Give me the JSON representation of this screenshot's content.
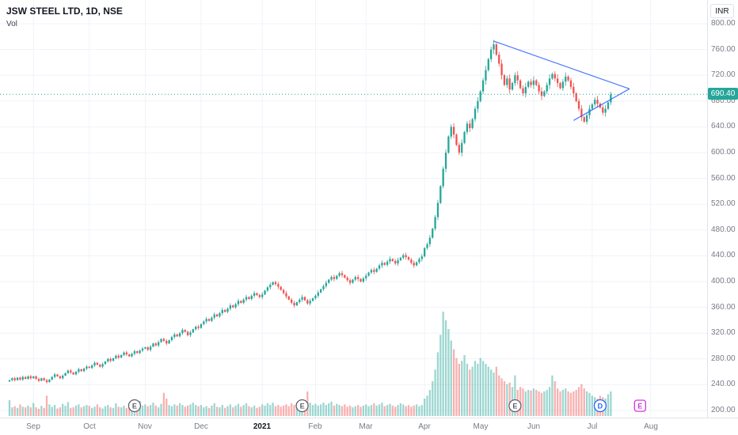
{
  "header": {
    "symbol_title": "JSW STEEL LTD, 1D, NSE",
    "study_label": "Vol",
    "currency_button": "INR"
  },
  "price_scale": {
    "labels": [
      "800.00",
      "760.00",
      "720.00",
      "680.00",
      "640.00",
      "600.00",
      "560.00",
      "520.00",
      "480.00",
      "440.00",
      "400.00",
      "360.00",
      "320.00",
      "280.00",
      "240.00",
      "200.00"
    ],
    "last_price": 690.4,
    "last_price_label": "690.40",
    "badge_color": "#26a69a"
  },
  "time_scale": {
    "future_labels": [
      {
        "label": "Aug",
        "index": 241
      }
    ]
  },
  "colors": {
    "up": "#26a69a",
    "down": "#ef5350",
    "vol_up": "rgba(38,166,154,0.45)",
    "vol_down": "rgba(239,83,80,0.45)",
    "grid": "#f0f3fa",
    "trendline": "#2962ff",
    "axis_text": "#787b86",
    "last_price_line": "#26a69a"
  },
  "chart_data": {
    "type": "candlestick",
    "title": "JSW STEEL LTD, 1D, NSE",
    "symbol": "JSW STEEL LTD",
    "interval": "1D",
    "exchange": "NSE",
    "currency": "INR",
    "price_axis": {
      "min": 200,
      "max": 800,
      "step": 40
    },
    "volume_overlay": true,
    "grid": true,
    "first_open": 245,
    "last_price": 690.4,
    "months": [
      {
        "label": "",
        "closes": [
          247,
          250,
          247,
          251,
          248,
          252,
          249,
          253,
          250
        ],
        "vols": [
          55,
          30,
          34,
          28,
          40,
          32,
          30,
          36,
          30
        ]
      },
      {
        "label": "Sep",
        "closes": [
          253,
          249,
          246,
          250,
          247,
          244,
          248,
          252,
          256,
          253,
          250,
          254,
          258,
          262,
          259,
          256,
          260,
          264,
          261,
          265,
          268
        ],
        "vols": [
          45,
          30,
          25,
          35,
          28,
          70,
          40,
          32,
          38,
          26,
          30,
          42,
          35,
          48,
          28,
          30,
          36,
          40,
          30,
          34,
          38
        ]
      },
      {
        "label": "Oct",
        "closes": [
          266,
          270,
          274,
          271,
          268,
          272,
          276,
          280,
          277,
          281,
          285,
          282,
          286,
          290,
          287,
          284,
          288,
          292,
          289,
          293,
          296
        ],
        "vols": [
          35,
          28,
          32,
          40,
          30,
          26,
          34,
          38,
          30,
          28,
          44,
          32,
          30,
          36,
          28,
          28,
          32,
          40,
          34,
          52,
          36
        ]
      },
      {
        "label": "Nov",
        "closes": [
          298,
          294,
          299,
          304,
          301,
          306,
          311,
          308,
          304,
          309,
          314,
          318,
          315,
          320,
          325,
          322,
          317,
          321,
          326,
          330,
          328
        ],
        "vols": [
          40,
          34,
          38,
          46,
          36,
          30,
          42,
          80,
          60,
          38,
          34,
          40,
          36,
          44,
          38,
          32,
          36,
          40,
          46,
          38,
          34
        ]
      },
      {
        "label": "Dec",
        "closes": [
          334,
          338,
          342,
          339,
          344,
          349,
          346,
          351,
          356,
          353,
          358,
          363,
          360,
          365,
          370,
          367,
          372,
          376,
          373,
          378,
          382,
          379,
          376
        ],
        "vols": [
          38,
          30,
          34,
          28,
          36,
          44,
          32,
          30,
          38,
          28,
          34,
          40,
          30,
          36,
          42,
          32,
          38,
          44,
          34,
          30,
          36,
          28,
          32
        ]
      },
      {
        "label": "2021",
        "closes": [
          380,
          386,
          391,
          395,
          399,
          396,
          392,
          387,
          382,
          377,
          372,
          367,
          363,
          368,
          372,
          376,
          371,
          366,
          370,
          374
        ],
        "vols": [
          40,
          36,
          44,
          38,
          46,
          34,
          38,
          32,
          36,
          40,
          34,
          44,
          38,
          32,
          36,
          30,
          34,
          85,
          46,
          38
        ]
      },
      {
        "label": "Feb",
        "closes": [
          378,
          383,
          388,
          393,
          398,
          403,
          407,
          404,
          409,
          413,
          410,
          406,
          402,
          398,
          403,
          407,
          404,
          400,
          405
        ],
        "vols": [
          42,
          36,
          40,
          46,
          38,
          44,
          50,
          36,
          42,
          38,
          34,
          40,
          32,
          36,
          30,
          34,
          38,
          32,
          36
        ]
      },
      {
        "label": "Mar",
        "closes": [
          409,
          414,
          418,
          415,
          420,
          425,
          429,
          426,
          431,
          435,
          432,
          428,
          433,
          437,
          441,
          438,
          434,
          429,
          425,
          430,
          435,
          439
        ],
        "vols": [
          40,
          34,
          38,
          44,
          36,
          40,
          46,
          34,
          38,
          42,
          36,
          32,
          38,
          44,
          40,
          34,
          38,
          32,
          36,
          40,
          34,
          38
        ]
      },
      {
        "label": "Apr",
        "closes": [
          452,
          458,
          468,
          482,
          500,
          522,
          548,
          575,
          600,
          625,
          640,
          628,
          612,
          600,
          615,
          632,
          645,
          638,
          652,
          668,
          680
        ],
        "vols": [
          60,
          70,
          90,
          120,
          160,
          220,
          280,
          360,
          330,
          300,
          260,
          230,
          200,
          180,
          190,
          210,
          180,
          160,
          170,
          190,
          180
        ]
      },
      {
        "label": "May",
        "closes": [
          695,
          712,
          728,
          745,
          760,
          768,
          752,
          738,
          720,
          705,
          715,
          698,
          708,
          720,
          712,
          700,
          692,
          702,
          710,
          705
        ],
        "vols": [
          200,
          190,
          180,
          170,
          160,
          150,
          170,
          140,
          130,
          120,
          110,
          115,
          100,
          140,
          90,
          100,
          95,
          85,
          90,
          88
        ]
      },
      {
        "label": "Jun",
        "closes": [
          712,
          705,
          695,
          688,
          695,
          705,
          715,
          722,
          715,
          708,
          700,
          710,
          718,
          712,
          702,
          692,
          680,
          668,
          655,
          648,
          658,
          668
        ],
        "vols": [
          95,
          90,
          85,
          80,
          85,
          90,
          100,
          140,
          120,
          95,
          85,
          90,
          95,
          85,
          80,
          85,
          90,
          100,
          110,
          95,
          85,
          80
        ]
      },
      {
        "label": "Jul",
        "closes": [
          675,
          682,
          676,
          670,
          662,
          668,
          678,
          690.4
        ],
        "vols": [
          70,
          65,
          60,
          70,
          65,
          60,
          75,
          85
        ]
      }
    ],
    "trendlines": [
      {
        "name": "triangle-upper",
        "from_idx": 182,
        "from_price": 773,
        "to_idx": 233,
        "to_price": 699
      },
      {
        "name": "triangle-lower",
        "from_idx": 212,
        "from_price": 650,
        "to_idx": 233,
        "to_price": 699
      }
    ],
    "markers": [
      {
        "label": "E",
        "idx": 47,
        "shape": "circle",
        "color": "#5d606b"
      },
      {
        "label": "E",
        "idx": 110,
        "shape": "circle",
        "color": "#5d606b"
      },
      {
        "label": "E",
        "idx": 190,
        "shape": "circle",
        "color": "#5d606b"
      },
      {
        "label": "D",
        "idx": 222,
        "shape": "circle",
        "color": "#2962ff"
      },
      {
        "label": "E",
        "idx": 237,
        "shape": "square",
        "color": "#d633e0"
      }
    ]
  }
}
